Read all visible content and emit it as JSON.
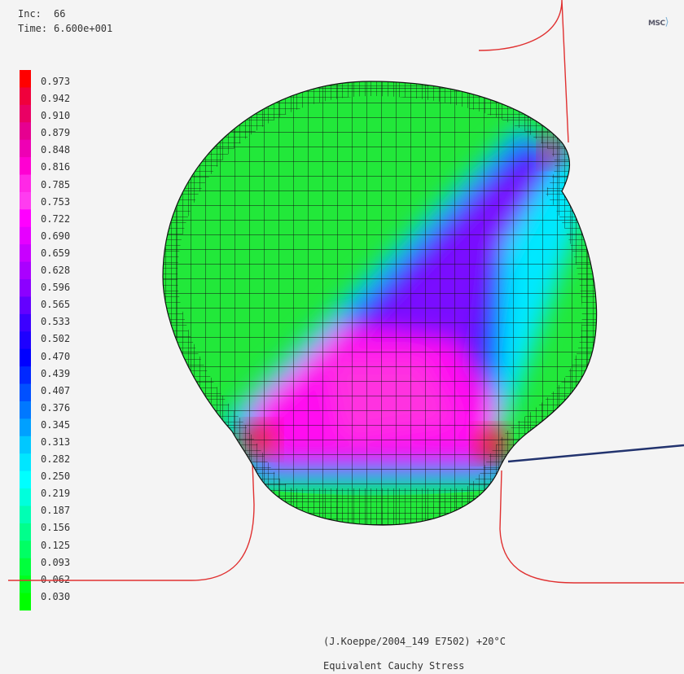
{
  "header": {
    "inc_label": "Inc:",
    "inc_value": "66",
    "time_label": "Time:",
    "time_value": "6.600e+001"
  },
  "logo_text": "MSC",
  "legend": {
    "values": [
      "0.973",
      "0.942",
      "0.910",
      "0.879",
      "0.848",
      "0.816",
      "0.785",
      "0.753",
      "0.722",
      "0.690",
      "0.659",
      "0.628",
      "0.596",
      "0.565",
      "0.533",
      "0.502",
      "0.470",
      "0.439",
      "0.407",
      "0.376",
      "0.345",
      "0.313",
      "0.282",
      "0.250",
      "0.219",
      "0.187",
      "0.156",
      "0.125",
      "0.093",
      "0.062",
      "0.030"
    ],
    "colors": [
      "#ff0000",
      "#f0003c",
      "#ea0064",
      "#e60090",
      "#ee00b4",
      "#ff00d2",
      "#ff28e6",
      "#ff3cf0",
      "#ff00ff",
      "#e600ff",
      "#c800ff",
      "#aa00ff",
      "#8c00ff",
      "#6400ff",
      "#3c00ff",
      "#1e00ff",
      "#0000ff",
      "#0028ff",
      "#0050ff",
      "#0078ff",
      "#00a0ff",
      "#00c8ff",
      "#00e6ff",
      "#00ffff",
      "#00ffdc",
      "#00ffb4",
      "#00ff8c",
      "#00ff64",
      "#00ff3c",
      "#00ff1e",
      "#00ff00"
    ]
  },
  "caption": {
    "source": "(J.Koeppe/2004_149 E7502) +20°C",
    "quantity": "Equivalent Cauchy Stress"
  }
}
